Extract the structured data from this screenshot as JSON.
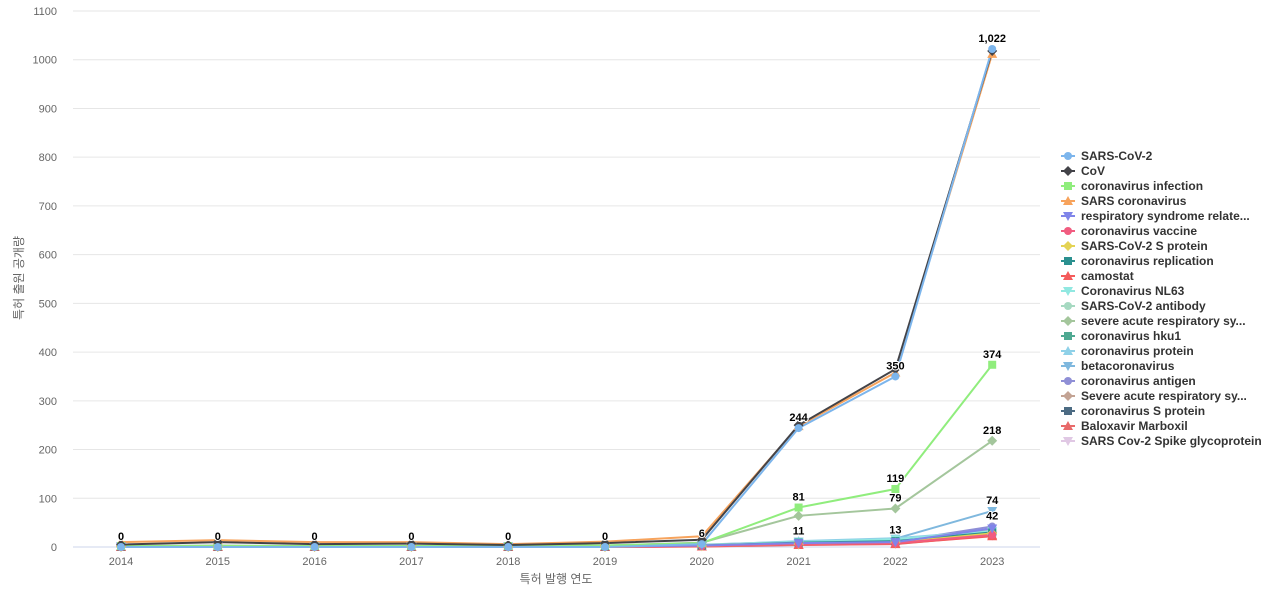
{
  "chart_data": {
    "type": "line",
    "xlabel": "특허 발행 연도",
    "ylabel": "특허 출원 공개량",
    "ylim": [
      0,
      1100
    ],
    "y_ticks": [
      0,
      100,
      200,
      300,
      400,
      500,
      600,
      700,
      800,
      900,
      1000,
      1100
    ],
    "grid": true,
    "legend_position": "right",
    "x": [
      "2014",
      "2015",
      "2016",
      "2017",
      "2018",
      "2019",
      "2020",
      "2021",
      "2022",
      "2023"
    ],
    "series": [
      {
        "name": "SARS-CoV-2",
        "color": "#7cb5ec",
        "marker": "circle",
        "values": [
          0,
          0,
          0,
          0,
          0,
          0,
          6,
          244,
          350,
          1022
        ],
        "labels": [
          "0",
          "0",
          "0",
          "0",
          "0",
          "0",
          "6",
          "244",
          "350",
          "1,022"
        ]
      },
      {
        "name": "CoV",
        "color": "#434348",
        "marker": "diamond",
        "values": [
          5,
          10,
          6,
          7,
          4,
          8,
          15,
          250,
          365,
          1018
        ]
      },
      {
        "name": "coronavirus infection",
        "color": "#90ed7d",
        "marker": "square",
        "values": [
          2,
          2,
          2,
          2,
          2,
          3,
          8,
          81,
          119,
          374
        ],
        "labels": [
          null,
          null,
          null,
          null,
          null,
          null,
          null,
          "81",
          "119",
          "374"
        ]
      },
      {
        "name": "SARS coronavirus",
        "color": "#f7a35c",
        "marker": "triangle",
        "values": [
          10,
          14,
          10,
          10,
          6,
          11,
          22,
          248,
          358,
          1012
        ]
      },
      {
        "name": "respiratory syndrome relate...",
        "color": "#8085e9",
        "marker": "triangle-down",
        "values": [
          1,
          1,
          1,
          1,
          1,
          1,
          3,
          8,
          10,
          38
        ]
      },
      {
        "name": "coronavirus vaccine",
        "color": "#f15c80",
        "marker": "circle",
        "values": [
          0,
          0,
          0,
          0,
          0,
          0,
          2,
          6,
          8,
          25
        ]
      },
      {
        "name": "SARS-CoV-2 S protein",
        "color": "#e4d354",
        "marker": "diamond",
        "values": [
          0,
          0,
          0,
          0,
          0,
          0,
          2,
          6,
          9,
          28
        ]
      },
      {
        "name": "coronavirus replication",
        "color": "#2b908f",
        "marker": "square",
        "values": [
          1,
          1,
          1,
          1,
          1,
          1,
          3,
          9,
          12,
          30
        ]
      },
      {
        "name": "camostat",
        "color": "#f45b5b",
        "marker": "triangle",
        "values": [
          0,
          0,
          0,
          0,
          0,
          0,
          1,
          5,
          7,
          22
        ]
      },
      {
        "name": "Coronavirus NL63",
        "color": "#91e8e1",
        "marker": "triangle-down",
        "values": [
          1,
          1,
          1,
          1,
          1,
          1,
          3,
          10,
          16,
          32
        ]
      },
      {
        "name": "SARS-CoV-2 antibody",
        "color": "#a6d9c1",
        "marker": "circle",
        "values": [
          0,
          0,
          0,
          0,
          0,
          0,
          4,
          10,
          14,
          35
        ]
      },
      {
        "name": "severe acute respiratory sy...",
        "color": "#a4c69c",
        "marker": "diamond",
        "values": [
          2,
          3,
          2,
          2,
          2,
          3,
          9,
          64,
          79,
          218
        ],
        "labels": [
          null,
          null,
          null,
          null,
          null,
          null,
          null,
          null,
          "79",
          "218"
        ]
      },
      {
        "name": "coronavirus hku1",
        "color": "#4fa992",
        "marker": "square",
        "values": [
          1,
          1,
          1,
          1,
          1,
          1,
          3,
          8,
          13,
          30
        ],
        "labels": [
          null,
          null,
          null,
          null,
          null,
          null,
          null,
          null,
          "13",
          null
        ]
      },
      {
        "name": "coronavirus protein",
        "color": "#8fd1e8",
        "marker": "triangle",
        "values": [
          1,
          1,
          1,
          1,
          1,
          1,
          4,
          12,
          18,
          33
        ]
      },
      {
        "name": "betacoronavirus",
        "color": "#7fb8de",
        "marker": "triangle-down",
        "values": [
          1,
          1,
          1,
          1,
          1,
          1,
          5,
          11,
          17,
          74
        ],
        "labels": [
          null,
          null,
          null,
          null,
          null,
          null,
          null,
          "11",
          null,
          "74"
        ]
      },
      {
        "name": "coronavirus antigen",
        "color": "#8f8fd6",
        "marker": "circle",
        "values": [
          0,
          0,
          0,
          0,
          0,
          0,
          3,
          9,
          11,
          42
        ],
        "labels": [
          null,
          null,
          null,
          null,
          null,
          null,
          null,
          null,
          null,
          "42"
        ]
      },
      {
        "name": "Severe acute respiratory sy...",
        "color": "#c3a394",
        "marker": "diamond",
        "values": [
          1,
          1,
          1,
          1,
          1,
          1,
          3,
          9,
          11,
          30
        ]
      },
      {
        "name": "coronavirus S protein",
        "color": "#4c6b83",
        "marker": "square",
        "values": [
          0,
          0,
          0,
          0,
          0,
          0,
          2,
          8,
          9,
          33
        ]
      },
      {
        "name": "Baloxavir Marboxil",
        "color": "#e86a6a",
        "marker": "triangle",
        "values": [
          0,
          0,
          0,
          0,
          0,
          0,
          1,
          4,
          6,
          24
        ]
      },
      {
        "name": "SARS Cov-2 Spike glycoprotein",
        "color": "#e0c8e4",
        "marker": "triangle-down",
        "values": [
          0,
          0,
          0,
          0,
          0,
          0,
          1,
          4,
          6,
          23
        ]
      }
    ]
  }
}
